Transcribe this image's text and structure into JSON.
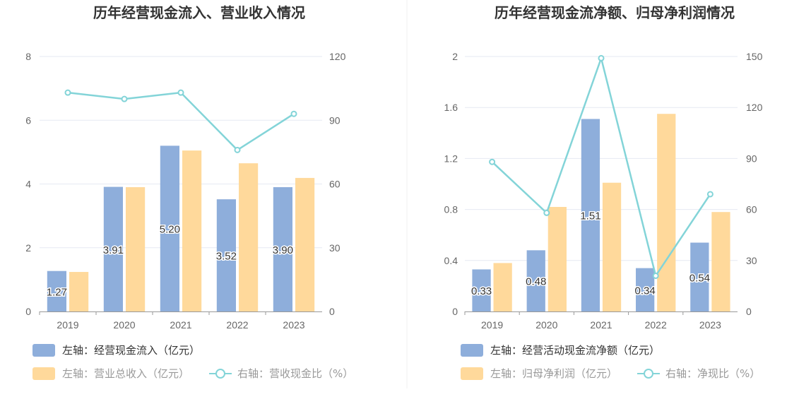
{
  "colors": {
    "bar1": "#8eaedb",
    "bar2": "#ffd99b",
    "line": "#83d4d8",
    "grid": "#e6e9f2",
    "axis": "#999999",
    "legend_text_active": "#333333",
    "legend_text_inactive": "#999999"
  },
  "chart_data": [
    {
      "type": "bar",
      "title": "历年经营现金流入、营业收入情况",
      "categories": [
        "2019",
        "2020",
        "2021",
        "2022",
        "2023"
      ],
      "left_axis": {
        "min": 0,
        "max": 8,
        "ticks": [
          "0",
          "2",
          "4",
          "6",
          "8"
        ]
      },
      "right_axis": {
        "min": 0,
        "max": 120,
        "ticks": [
          "0",
          "30",
          "60",
          "90",
          "120"
        ]
      },
      "series": [
        {
          "name": "左轴：经营现金流入（亿元）",
          "type": "bar",
          "axis": "left",
          "values": [
            1.27,
            3.91,
            5.2,
            3.52,
            3.9
          ],
          "labels": [
            "1.27",
            "3.91",
            "5.20",
            "3.52",
            "3.90"
          ]
        },
        {
          "name": "左轴：营业总收入（亿元）",
          "type": "bar",
          "axis": "left",
          "values": [
            1.24,
            3.9,
            5.05,
            4.65,
            4.19
          ]
        },
        {
          "name": "右轴：营收现金比（%）",
          "type": "line",
          "axis": "right",
          "values": [
            103,
            100,
            103,
            76,
            93
          ]
        }
      ]
    },
    {
      "type": "bar",
      "title": "历年经营现金流净额、归母净利润情况",
      "categories": [
        "2019",
        "2020",
        "2021",
        "2022",
        "2023"
      ],
      "left_axis": {
        "min": 0,
        "max": 2,
        "ticks": [
          "0",
          "0.4",
          "0.8",
          "1.2",
          "1.6",
          "2"
        ]
      },
      "right_axis": {
        "min": 0,
        "max": 150,
        "ticks": [
          "0",
          "30",
          "60",
          "90",
          "120",
          "150"
        ]
      },
      "series": [
        {
          "name": "左轴：经营活动现金流净额（亿元）",
          "type": "bar",
          "axis": "left",
          "values": [
            0.33,
            0.48,
            1.51,
            0.34,
            0.54
          ],
          "labels": [
            "0.33",
            "0.48",
            "1.51",
            "0.34",
            "0.54"
          ]
        },
        {
          "name": "左轴：归母净利润（亿元）",
          "type": "bar",
          "axis": "left",
          "values": [
            0.38,
            0.82,
            1.01,
            1.55,
            0.78
          ]
        },
        {
          "name": "右轴：净现比（%）",
          "type": "line",
          "axis": "right",
          "values": [
            88,
            58,
            149,
            21,
            69
          ]
        }
      ]
    }
  ]
}
